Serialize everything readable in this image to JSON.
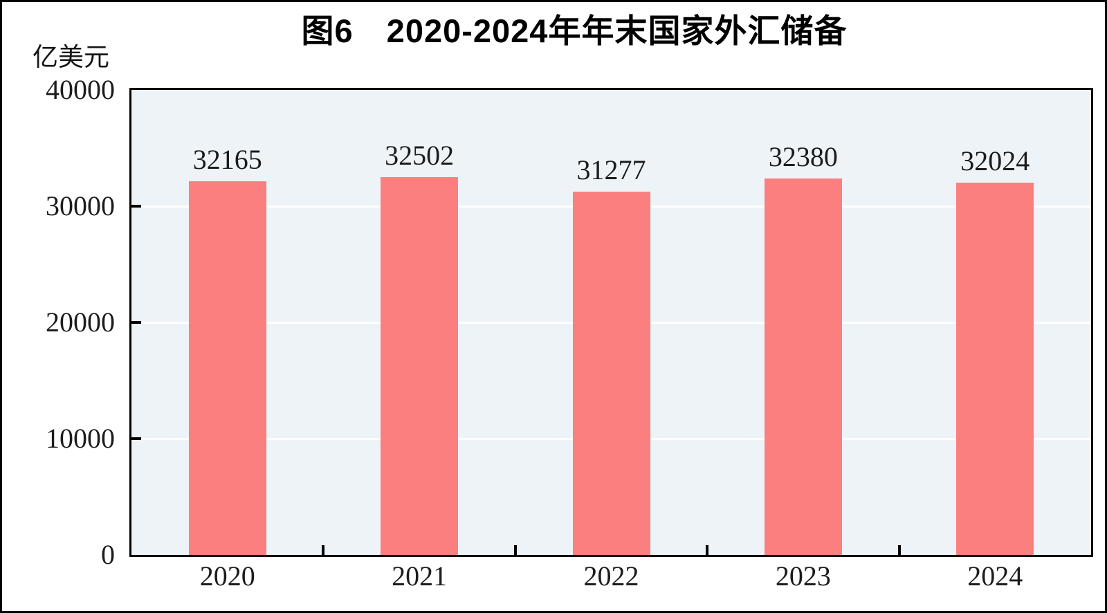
{
  "chart_data": {
    "type": "bar",
    "title": "图6　2020-2024年年末国家外汇储备",
    "unit_label": "亿美元",
    "categories": [
      "2020",
      "2021",
      "2022",
      "2023",
      "2024"
    ],
    "values": [
      32165,
      32502,
      31277,
      32380,
      32024
    ],
    "ylim": [
      0,
      40000
    ],
    "yticks": [
      0,
      10000,
      20000,
      30000,
      40000
    ],
    "ytick_labels": [
      "0",
      "10000",
      "20000",
      "30000",
      "40000"
    ],
    "gridlines_at": [
      10000,
      20000,
      30000
    ],
    "grid": "horizontal",
    "legend": "none",
    "data_labels_shown": true,
    "colors": {
      "bar": "#fc7f7f",
      "plot_background": "#edf3f7",
      "gridline": "#ffffff",
      "axis": "#000000",
      "text": "#1c1c1c",
      "title": "#000000"
    }
  }
}
